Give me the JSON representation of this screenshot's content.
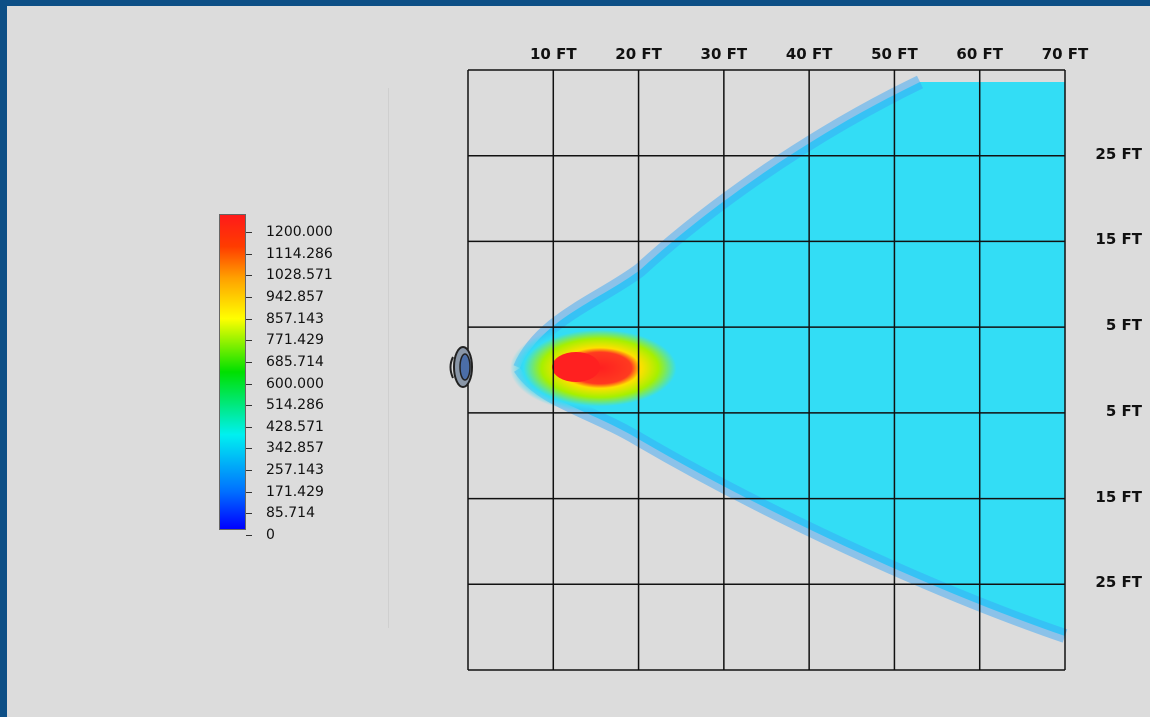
{
  "chart_data": {
    "type": "heatmap",
    "x_tick_labels": [
      "10 FT",
      "20 FT",
      "30 FT",
      "40 FT",
      "50 FT",
      "60 FT",
      "70 FT"
    ],
    "y_tick_labels": [
      "25 FT",
      "15 FT",
      "5 FT",
      "5 FT",
      "15 FT",
      "25 FT"
    ],
    "legend": {
      "min": 0,
      "max": 1200,
      "labels": [
        "1200.000",
        "1114.286",
        "1028.571",
        "942.857",
        "857.143",
        "771.429",
        "685.714",
        "600.000",
        "514.286",
        "428.571",
        "342.857",
        "257.143",
        "171.429",
        "85.714",
        "0"
      ]
    },
    "colors": {
      "high": "#ff2020",
      "mid": "#00e000",
      "low": "#0000ff",
      "field": "#33ddf5"
    },
    "icons": [
      "light-fixture-icon"
    ]
  }
}
